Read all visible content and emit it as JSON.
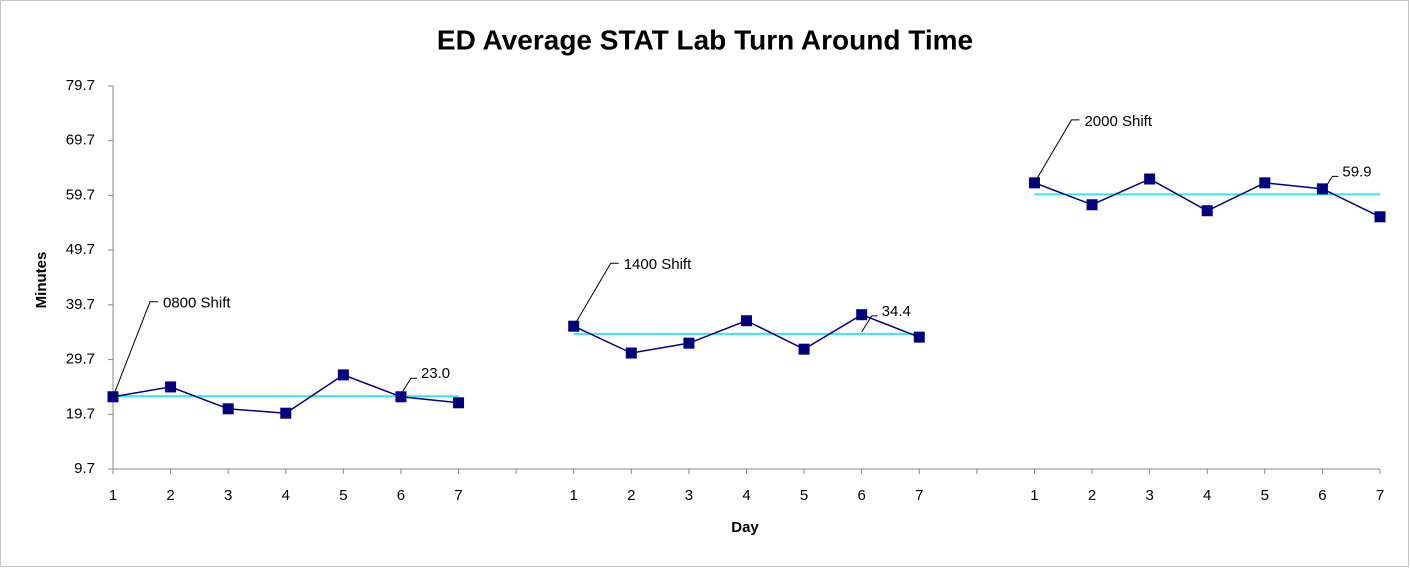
{
  "chart_data": {
    "type": "line",
    "title": "ED Average STAT Lab Turn Around Time",
    "x_label": "Day",
    "y_label": "Minutes",
    "categories": [
      "1",
      "2",
      "3",
      "4",
      "5",
      "6",
      "7",
      null,
      "1",
      "2",
      "3",
      "4",
      "5",
      "6",
      "7",
      null,
      "1",
      "2",
      "3",
      "4",
      "5",
      "6",
      "7"
    ],
    "values": [
      22.9,
      24.7,
      20.7,
      19.9,
      26.9,
      22.9,
      21.8,
      null,
      35.8,
      30.9,
      32.7,
      36.8,
      31.6,
      37.9,
      33.8,
      null,
      62.0,
      58.0,
      62.7,
      56.9,
      62.0,
      60.9,
      55.8
    ],
    "color": "#000080",
    "annotations": [
      "0800 Shift",
      "1400 Shift",
      "2000 Shift"
    ],
    "center_lines": {
      "values": [
        23.0,
        34.4,
        59.9
      ],
      "value_labels": [
        "23.0",
        "34.4",
        "59.9"
      ],
      "color": "#33e6f0"
    },
    "ylim": [
      9.7,
      79.7
    ],
    "yticks": [
      9.7,
      19.7,
      29.7,
      39.7,
      49.7,
      59.7,
      69.7,
      79.7
    ]
  }
}
